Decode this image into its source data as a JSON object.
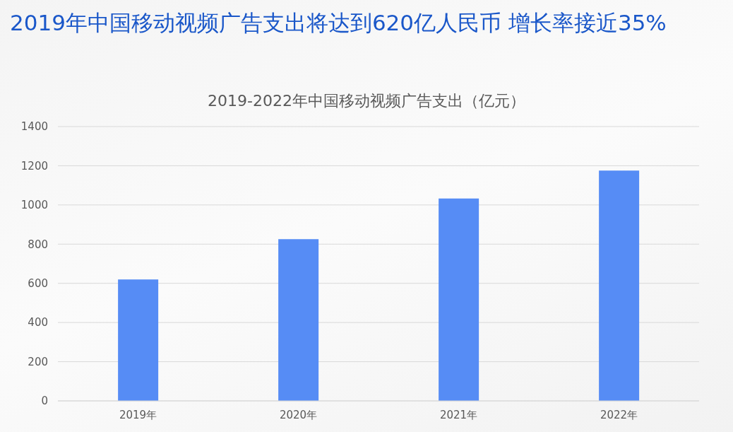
{
  "chart_data": {
    "type": "bar",
    "title": "2019年中国移动视频广告支出将达到620亿人民币 增长率接近35%",
    "subtitle": "2019-2022年中国移动视频广告支出（亿元）",
    "categories": [
      "2019年",
      "2020年",
      "2021年",
      "2022年"
    ],
    "values": [
      620,
      825,
      1033,
      1175
    ],
    "color": "#568cf5",
    "ylim": [
      0,
      1400
    ],
    "yticks": [
      0,
      200,
      400,
      600,
      800,
      1000,
      1200,
      1400
    ],
    "grid": "y"
  }
}
